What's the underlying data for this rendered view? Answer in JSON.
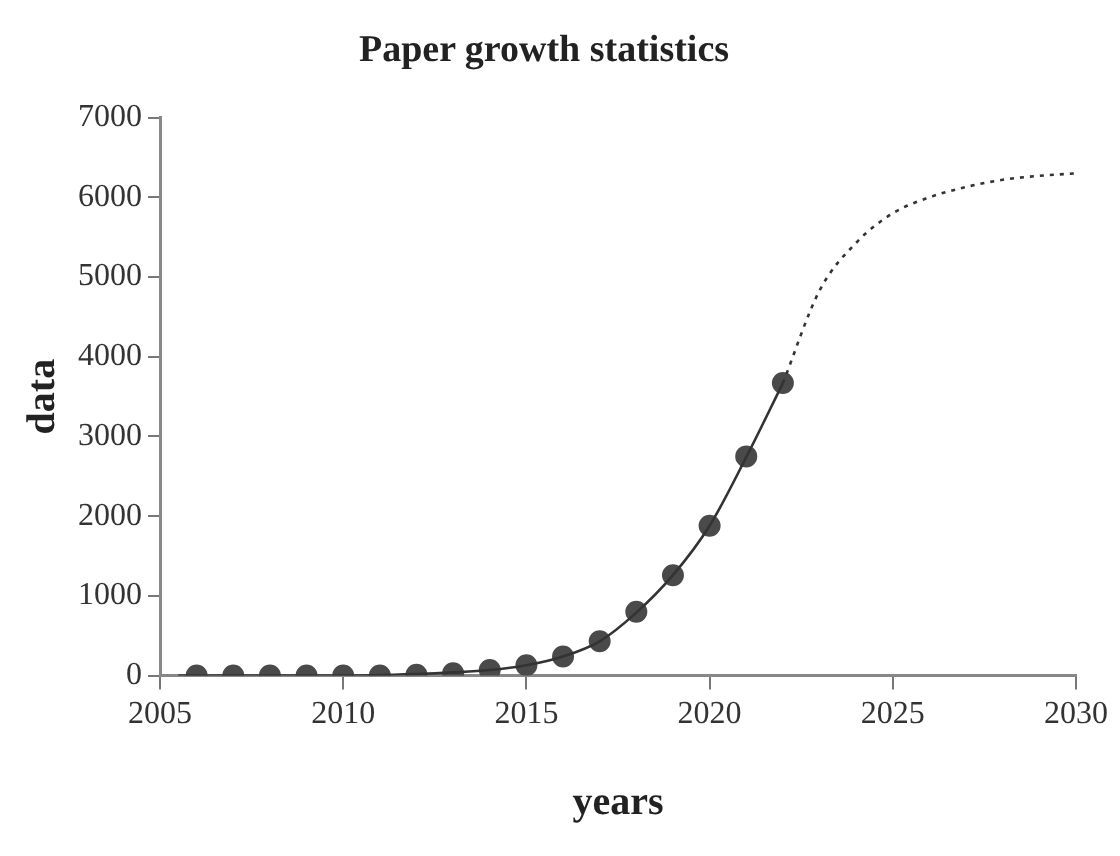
{
  "chart_data": {
    "type": "scatter",
    "title": "Paper growth statistics",
    "xlabel": "years",
    "ylabel": "data",
    "xlim": [
      2005,
      2030
    ],
    "xticks": [
      2005,
      2010,
      2015,
      2020,
      2025,
      2030
    ],
    "ylim": [
      0,
      7000
    ],
    "yticks": [
      0,
      1000,
      2000,
      3000,
      4000,
      5000,
      6000,
      7000
    ],
    "grid": false,
    "legend": false,
    "marker": "circle",
    "series": [
      {
        "type": "line",
        "color": "#333333",
        "line_style": "solid",
        "marker": "none",
        "x": [
          2005.5,
          2008,
          2010,
          2012,
          2013,
          2014,
          2015,
          2016,
          2017,
          2018,
          2019,
          2020,
          2021,
          2022
        ],
        "values": [
          0,
          0,
          0,
          20,
          40,
          70,
          130,
          240,
          430,
          790,
          1260,
          1880,
          2740,
          3670
        ]
      },
      {
        "type": "line",
        "color": "#333333",
        "line_style": "dotted",
        "marker": "none",
        "x": [
          2022,
          2023,
          2024,
          2025,
          2026,
          2027,
          2028,
          2029,
          2030
        ],
        "values": [
          3670,
          4830,
          5430,
          5800,
          6000,
          6130,
          6220,
          6270,
          6300
        ]
      },
      {
        "color": "#4a4a4a",
        "x": [
          2006,
          2007,
          2008,
          2009,
          2010,
          2011,
          2012,
          2013,
          2014,
          2015,
          2016,
          2017,
          2018,
          2019,
          2020,
          2021,
          2022
        ],
        "values": [
          0,
          0,
          0,
          0,
          0,
          0,
          10,
          30,
          70,
          130,
          240,
          430,
          800,
          1260,
          1880,
          2750,
          3670
        ]
      }
    ]
  }
}
